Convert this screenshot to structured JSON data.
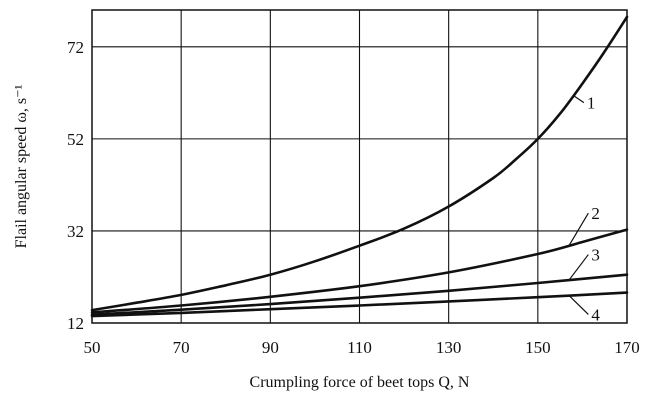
{
  "chart_data": {
    "type": "line",
    "xlabel": "Crumpling force of beet tops Q, N",
    "ylabel": "Flail angular speed ω, s⁻¹",
    "xlim": [
      50,
      170
    ],
    "ylim": [
      12,
      80
    ],
    "x_ticks": [
      50,
      70,
      90,
      110,
      130,
      150,
      170
    ],
    "y_ticks": [
      12,
      32,
      52,
      72
    ],
    "grid": true,
    "colors": {
      "line": "#111111",
      "grid": "#111111"
    },
    "series": [
      {
        "name": "1",
        "x": [
          50,
          60,
          70,
          80,
          90,
          100,
          110,
          120,
          130,
          140,
          145,
          150,
          155,
          160,
          165,
          170
        ],
        "y": [
          14.8,
          16.4,
          18.1,
          20.2,
          22.5,
          25.4,
          28.8,
          32.5,
          37.3,
          43.5,
          47.5,
          52.0,
          57.5,
          64.0,
          71.0,
          78.5
        ]
      },
      {
        "name": "2",
        "x": [
          50,
          70,
          90,
          110,
          130,
          150,
          160,
          170
        ],
        "y": [
          14.3,
          15.8,
          17.7,
          20.0,
          23.0,
          27.0,
          29.6,
          32.3
        ]
      },
      {
        "name": "3",
        "x": [
          50,
          70,
          90,
          110,
          130,
          150,
          170
        ],
        "y": [
          13.8,
          14.9,
          16.1,
          17.5,
          19.0,
          20.7,
          22.5
        ]
      },
      {
        "name": "4",
        "x": [
          50,
          70,
          90,
          110,
          130,
          150,
          170
        ],
        "y": [
          13.5,
          14.2,
          15.0,
          15.8,
          16.7,
          17.6,
          18.6
        ]
      }
    ],
    "curve_labels": [
      {
        "text": "1",
        "series": 0,
        "anchor_x": 158,
        "label_x": 161,
        "label_y": 59
      },
      {
        "text": "2",
        "series": 1,
        "anchor_x": 157,
        "label_x": 162,
        "label_y": 35
      },
      {
        "text": "3",
        "series": 2,
        "anchor_x": 157,
        "label_x": 162,
        "label_y": 26
      },
      {
        "text": "4",
        "series": 3,
        "anchor_x": 157,
        "label_x": 162,
        "label_y": 13
      }
    ]
  }
}
